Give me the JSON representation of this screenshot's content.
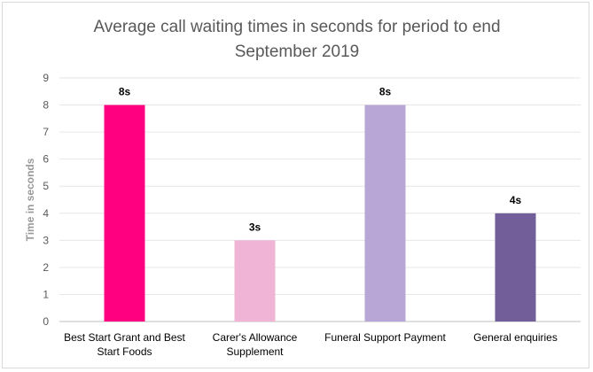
{
  "chart_data": {
    "type": "bar",
    "title": "Average call waiting times in seconds for period to end\nSeptember 2019",
    "xlabel": "",
    "ylabel": "Time in seconds",
    "ylim": [
      0,
      9
    ],
    "yticks": [
      0,
      1,
      2,
      3,
      4,
      5,
      6,
      7,
      8,
      9
    ],
    "grid": true,
    "legend": "none",
    "categories": [
      [
        "Best Start Grant and Best",
        "Start Foods"
      ],
      [
        "Carer's Allowance",
        "Supplement"
      ],
      [
        "Funeral Support Payment"
      ],
      [
        "General enquiries"
      ]
    ],
    "values": [
      8,
      3,
      8,
      4
    ],
    "data_labels": [
      "8s",
      "3s",
      "8s",
      "4s"
    ],
    "colors": [
      "#ff0080",
      "#f0b4d6",
      "#b8a6d6",
      "#725e99"
    ]
  }
}
